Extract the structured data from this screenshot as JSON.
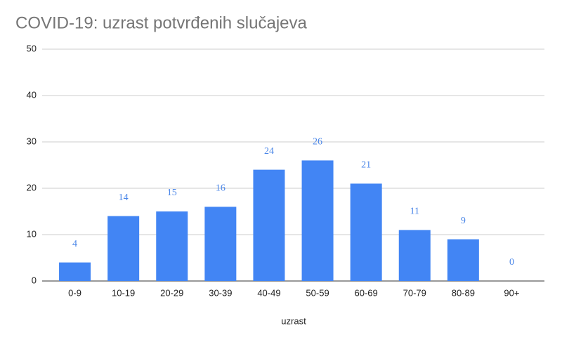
{
  "chart_data": {
    "type": "bar",
    "title": "COVID-19: uzrast potvrđenih slučajeva",
    "x_label": "uzrast",
    "categories": [
      "0-9",
      "10-19",
      "20-29",
      "30-39",
      "40-49",
      "50-59",
      "60-69",
      "70-79",
      "80-89",
      "90+"
    ],
    "values": [
      4,
      14,
      15,
      16,
      24,
      26,
      21,
      11,
      9,
      0
    ],
    "color": "#4285f4",
    "label_color": "#4a86e8",
    "ylim": [
      0,
      50
    ],
    "yticks": [
      0,
      10,
      20,
      30,
      40,
      50
    ],
    "grid": true
  }
}
